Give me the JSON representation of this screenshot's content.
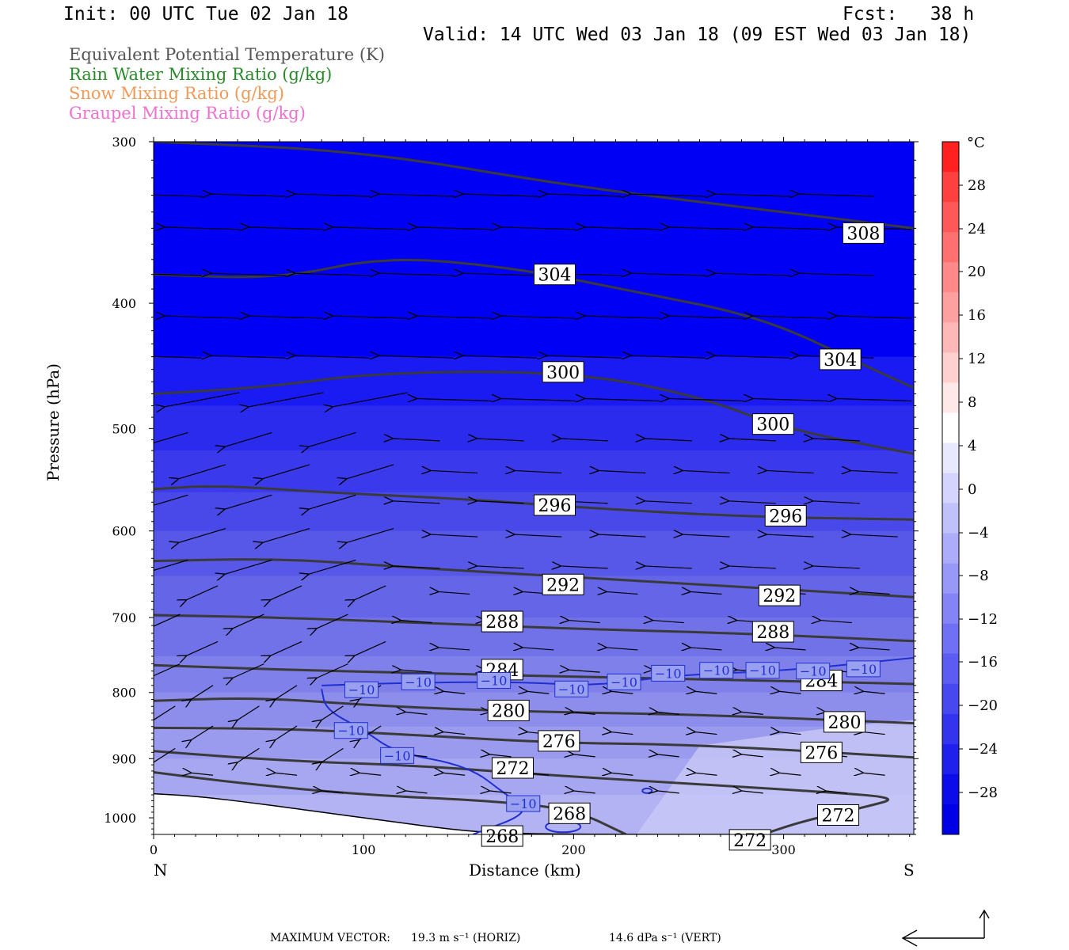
{
  "header": {
    "init": "Init: 00 UTC Tue 02 Jan 18",
    "fcst": "Fcst:   38 h",
    "valid": "Valid: 14 UTC Wed 03 Jan 18 (09 EST Wed 03 Jan 18)"
  },
  "legend": [
    {
      "label": "Equivalent Potential Temperature (K)",
      "color": "#555555"
    },
    {
      "label": "Rain Water Mixing Ratio (g/kg)",
      "color": "#2a8a2a"
    },
    {
      "label": "Snow Mixing Ratio (g/kg)",
      "color": "#f09a5a"
    },
    {
      "label": "Graupel Mixing Ratio (g/kg)",
      "color": "#f070d0"
    }
  ],
  "axes": {
    "ylabel": "Pressure (hPa)",
    "xlabel": "Distance (km)",
    "x_left_end": "N",
    "x_right_end": "S"
  },
  "colorbar": {
    "unit": "°C",
    "labels": [
      "28",
      "24",
      "20",
      "16",
      "12",
      "8",
      "4",
      "0",
      "−4",
      "−8",
      "−12",
      "−16",
      "−20",
      "−24",
      "−28"
    ]
  },
  "footer": {
    "max_vector_label": "MAXIMUM VECTOR:",
    "horiz": "19.3 m s⁻¹ (HORIZ)",
    "vert": "14.6 dPa s⁻¹ (VERT)"
  },
  "chart_data": {
    "type": "cross-section",
    "xlim": [
      0,
      362
    ],
    "ylim": [
      1030,
      300
    ],
    "y_scale": "log-pressure",
    "x_ticks": [
      0,
      100,
      200,
      300
    ],
    "y_ticks": [
      300,
      400,
      500,
      600,
      700,
      800,
      900,
      1000
    ],
    "theta_e_contours": [
      {
        "value": 308,
        "labels": [
          {
            "text": "308",
            "x": 338,
            "p": 353
          }
        ],
        "points": [
          [
            0,
            300
          ],
          [
            100,
            305
          ],
          [
            200,
            325
          ],
          [
            300,
            340
          ],
          [
            362,
            350
          ]
        ]
      },
      {
        "value": 304,
        "labels": [
          {
            "text": "304",
            "x": 191,
            "p": 380
          },
          {
            "text": "304",
            "x": 327,
            "p": 442
          }
        ],
        "points": [
          [
            0,
            380
          ],
          [
            60,
            383
          ],
          [
            110,
            368
          ],
          [
            170,
            375
          ],
          [
            230,
            392
          ],
          [
            290,
            410
          ],
          [
            340,
            448
          ],
          [
            362,
            465
          ]
        ]
      },
      {
        "value": 300,
        "labels": [
          {
            "text": "300",
            "x": 195,
            "p": 452
          },
          {
            "text": "300",
            "x": 295,
            "p": 496
          }
        ],
        "points": [
          [
            0,
            470
          ],
          [
            50,
            465
          ],
          [
            110,
            452
          ],
          [
            200,
            452
          ],
          [
            260,
            472
          ],
          [
            300,
            500
          ],
          [
            362,
            523
          ]
        ]
      },
      {
        "value": 296,
        "labels": [
          {
            "text": "296",
            "x": 191,
            "p": 573
          },
          {
            "text": "296",
            "x": 301,
            "p": 584
          }
        ],
        "points": [
          [
            0,
            557
          ],
          [
            30,
            553
          ],
          [
            80,
            560
          ],
          [
            150,
            567
          ],
          [
            200,
            575
          ],
          [
            280,
            585
          ],
          [
            362,
            588
          ]
        ]
      },
      {
        "value": 292,
        "labels": [
          {
            "text": "292",
            "x": 195,
            "p": 660
          },
          {
            "text": "292",
            "x": 298,
            "p": 673
          }
        ],
        "points": [
          [
            0,
            633
          ],
          [
            60,
            630
          ],
          [
            120,
            640
          ],
          [
            190,
            650
          ],
          [
            260,
            660
          ],
          [
            362,
            675
          ]
        ]
      },
      {
        "value": 288,
        "labels": [
          {
            "text": "288",
            "x": 166,
            "p": 705
          },
          {
            "text": "288",
            "x": 295,
            "p": 718
          }
        ],
        "points": [
          [
            0,
            697
          ],
          [
            60,
            700
          ],
          [
            140,
            708
          ],
          [
            210,
            715
          ],
          [
            280,
            720
          ],
          [
            362,
            730
          ]
        ]
      },
      {
        "value": 284,
        "labels": [
          {
            "text": "284",
            "x": 166,
            "p": 768
          },
          {
            "text": "284",
            "x": 318,
            "p": 783
          }
        ],
        "points": [
          [
            0,
            762
          ],
          [
            60,
            768
          ],
          [
            130,
            773
          ],
          [
            200,
            778
          ],
          [
            290,
            783
          ],
          [
            362,
            788
          ]
        ]
      },
      {
        "value": 280,
        "labels": [
          {
            "text": "280",
            "x": 169,
            "p": 826
          },
          {
            "text": "280",
            "x": 329,
            "p": 843
          }
        ],
        "points": [
          [
            0,
            812
          ],
          [
            50,
            807
          ],
          [
            110,
            820
          ],
          [
            180,
            828
          ],
          [
            260,
            832
          ],
          [
            362,
            845
          ]
        ]
      },
      {
        "value": 276,
        "labels": [
          {
            "text": "276",
            "x": 193,
            "p": 872
          },
          {
            "text": "276",
            "x": 318,
            "p": 890
          }
        ],
        "points": [
          [
            0,
            852
          ],
          [
            60,
            853
          ],
          [
            120,
            862
          ],
          [
            190,
            875
          ],
          [
            260,
            878
          ],
          [
            362,
            898
          ]
        ]
      },
      {
        "value": 272,
        "labels": [
          {
            "text": "272",
            "x": 171,
            "p": 915
          },
          {
            "text": "272",
            "x": 326,
            "p": 995
          },
          {
            "text": "272",
            "x": 284,
            "p": 1040
          }
        ],
        "points": [
          [
            0,
            888
          ],
          [
            60,
            903
          ],
          [
            130,
            912
          ],
          [
            180,
            925
          ],
          [
            250,
            940
          ],
          [
            320,
            955
          ],
          [
            355,
            965
          ],
          [
            340,
            980
          ],
          [
            310,
            1005
          ],
          [
            290,
            1030
          ]
        ]
      },
      {
        "value": 268,
        "labels": [
          {
            "text": "268",
            "x": 198,
            "p": 992
          },
          {
            "text": "268",
            "x": 166,
            "p": 1033
          }
        ],
        "points": [
          [
            0,
            922
          ],
          [
            40,
            940
          ],
          [
            100,
            960
          ],
          [
            160,
            970
          ],
          [
            200,
            985
          ],
          [
            225,
            1030
          ]
        ]
      }
    ],
    "temp_contours": [
      {
        "value": -10,
        "labels": [
          {
            "text": "−10",
            "x": 99,
            "p": 796
          },
          {
            "text": "−10",
            "x": 126,
            "p": 785
          },
          {
            "text": "−10",
            "x": 162,
            "p": 783
          },
          {
            "text": "−10",
            "x": 199,
            "p": 795
          },
          {
            "text": "−10",
            "x": 224,
            "p": 785
          },
          {
            "text": "−10",
            "x": 245,
            "p": 773
          },
          {
            "text": "−10",
            "x": 268,
            "p": 769
          },
          {
            "text": "−10",
            "x": 290,
            "p": 769
          },
          {
            "text": "−10",
            "x": 314,
            "p": 770
          },
          {
            "text": "−10",
            "x": 338,
            "p": 767
          },
          {
            "text": "−10",
            "x": 94,
            "p": 856
          },
          {
            "text": "−10",
            "x": 116,
            "p": 895
          },
          {
            "text": "−10",
            "x": 176,
            "p": 975
          }
        ],
        "points": [
          [
            80,
            790
          ],
          [
            125,
            786
          ],
          [
            175,
            785
          ],
          [
            210,
            791
          ],
          [
            250,
            775
          ],
          [
            300,
            770
          ],
          [
            362,
            752
          ]
        ]
      },
      {
        "value": -10,
        "points": [
          [
            80,
            795
          ],
          [
            82,
            825
          ],
          [
            100,
            855
          ],
          [
            115,
            890
          ],
          [
            150,
            912
          ],
          [
            168,
            960
          ],
          [
            180,
            990
          ],
          [
            152,
            1030
          ]
        ]
      }
    ],
    "temp_fill_levels_degC": [
      -28,
      -24,
      -20,
      -16,
      -12,
      -8,
      -4,
      0,
      4,
      8,
      12,
      16,
      20,
      24,
      28
    ],
    "surface_pressure": [
      [
        0,
        958
      ],
      [
        20,
        962
      ],
      [
        50,
        975
      ],
      [
        80,
        990
      ],
      [
        110,
        1005
      ],
      [
        140,
        1020
      ],
      [
        160,
        1027
      ],
      [
        200,
        1030
      ],
      [
        362,
        1030
      ]
    ],
    "wind_vectors_note": "N-S circulation vectors; predominantly northward (leftward) flow at all levels"
  }
}
